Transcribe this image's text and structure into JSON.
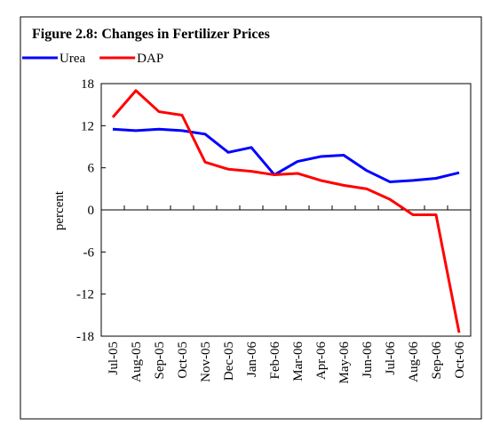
{
  "chart_data": {
    "type": "line",
    "title": "Figure 2.8: Changes in Fertilizer Prices",
    "y_label": "percent",
    "categories": [
      "Jul-05",
      "Aug-05",
      "Sep-05",
      "Oct-05",
      "Nov-05",
      "Dec-05",
      "Jan-06",
      "Feb-06",
      "Mar-06",
      "Apr-06",
      "May-06",
      "Jun-06",
      "Jul-06",
      "Aug-06",
      "Sep-06",
      "Oct-06"
    ],
    "series": [
      {
        "name": "Urea",
        "color": "#0000ff",
        "values": [
          11.5,
          11.3,
          11.5,
          11.3,
          10.8,
          8.2,
          8.9,
          5.0,
          6.9,
          7.6,
          7.8,
          5.6,
          4.0,
          4.2,
          4.5,
          5.3
        ]
      },
      {
        "name": "DAP",
        "color": "#ff0000",
        "values": [
          13.2,
          17.0,
          14.0,
          13.5,
          6.8,
          5.8,
          5.5,
          5.0,
          5.2,
          4.2,
          3.5,
          3.0,
          1.5,
          -0.7,
          -0.7,
          -17.5
        ]
      }
    ],
    "ylim": [
      -18,
      18
    ],
    "yticks": [
      18,
      12,
      6,
      0,
      -6,
      -12,
      -18
    ],
    "legend": "top-left",
    "grid": false
  }
}
